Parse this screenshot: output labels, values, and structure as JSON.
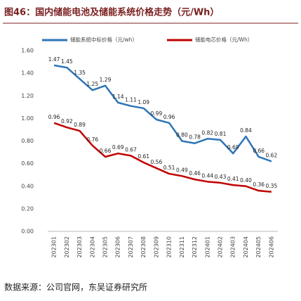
{
  "chart_data": {
    "type": "line",
    "title": "图46：国内储能电池及储能系统价格走势（元/Wh）",
    "source": "数据来源：公司官网，东吴证券研究所",
    "categories": [
      "202301",
      "202302",
      "202303",
      "202304",
      "202305",
      "202306",
      "202307",
      "202308",
      "202309",
      "202310",
      "202311",
      "202312",
      "202401",
      "202402",
      "202403",
      "202404",
      "202405",
      "202406"
    ],
    "series": [
      {
        "name": "储能系统中标价格（元/wh）",
        "color": "#2e75b6",
        "values": [
          1.47,
          1.45,
          1.35,
          1.25,
          1.29,
          1.14,
          1.11,
          1.09,
          0.99,
          0.96,
          0.8,
          0.78,
          0.82,
          0.81,
          0.69,
          0.84,
          0.66,
          0.62
        ],
        "value_labels": [
          "1.47",
          "1.45",
          "1.35",
          "1.25",
          "1.29",
          "1.14",
          "1.11",
          "1.09",
          "0.99",
          "0.96",
          "0.80",
          "0.78",
          "0.82",
          "0.81",
          "0.69",
          "0.84",
          "0.66",
          "0.62"
        ]
      },
      {
        "name": "储能电芯价格（元/Wh）",
        "color": "#c00000",
        "values": [
          0.96,
          0.92,
          0.89,
          0.76,
          0.66,
          0.69,
          0.67,
          0.61,
          0.56,
          0.51,
          0.49,
          0.46,
          0.44,
          0.43,
          0.41,
          0.4,
          0.36,
          0.35
        ],
        "value_labels": [
          "0.96",
          "0.92",
          "0.89",
          "0.76",
          "0.66",
          "0.69",
          "0.67",
          "0.61",
          "0.56",
          "0.51",
          "0.49",
          "0.46",
          "0.44",
          "0.43",
          "0.41",
          "0.40",
          "0.36",
          "0.35"
        ]
      }
    ],
    "ylim": [
      0,
      1.6
    ],
    "yticks": [
      {
        "value": 0,
        "label": "0.00"
      },
      {
        "value": 0.2,
        "label": "0.20"
      },
      {
        "value": 0.4,
        "label": "0.40"
      },
      {
        "value": 0.6,
        "label": "0.60"
      },
      {
        "value": 0.8,
        "label": "0.80"
      },
      {
        "value": 1.0,
        "label": "1.00"
      },
      {
        "value": 1.2,
        "label": "1.20"
      },
      {
        "value": 1.4,
        "label": "1.40"
      },
      {
        "value": 1.6,
        "label": "1.60"
      }
    ],
    "legend": "top",
    "grid": false
  }
}
